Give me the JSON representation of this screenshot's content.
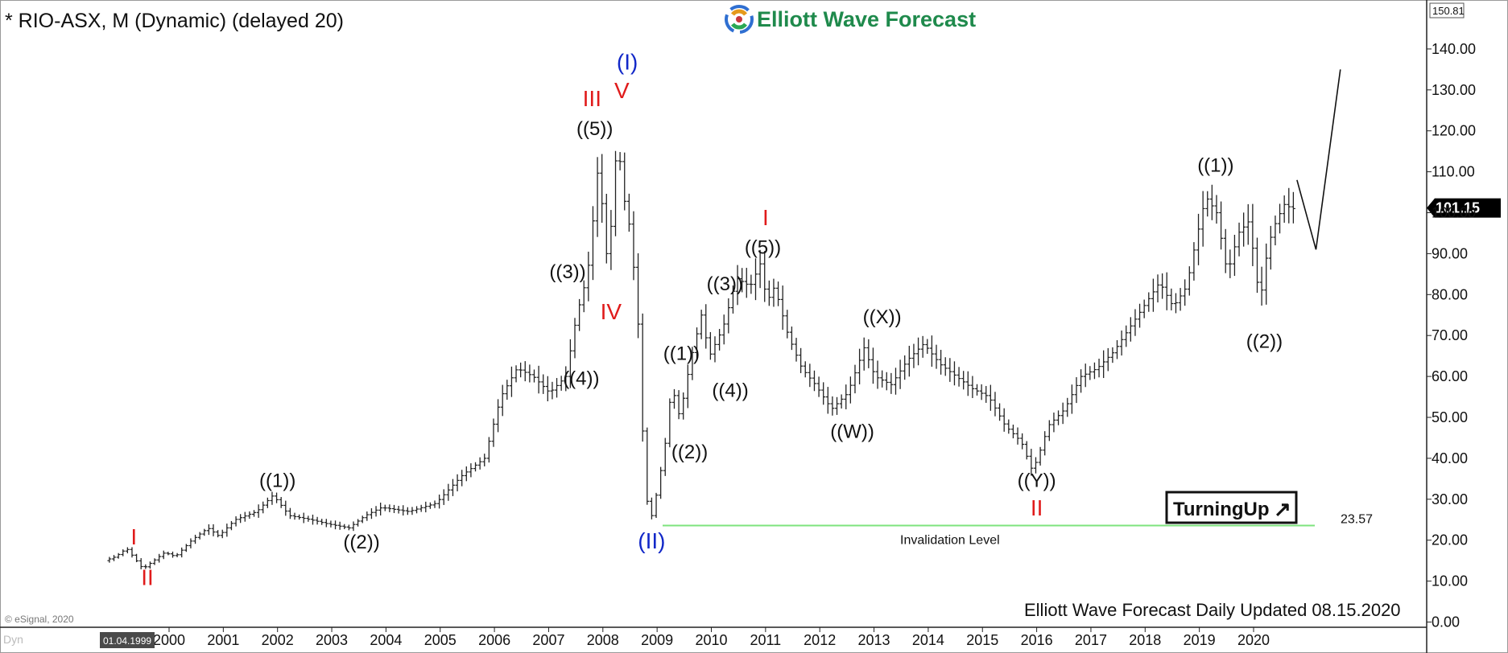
{
  "header": {
    "symbol_title": "* RIO-ASX, M (Dynamic) (delayed 20)",
    "brand_name": "Elliott Wave Forecast"
  },
  "price_axis": {
    "top_value_label": "150.81",
    "current_price_label": "101.15",
    "current_price": 101.15
  },
  "footer": {
    "update_text": "Elliott Wave Forecast Daily Updated 08.15.2020",
    "copyright": "© eSignal, 2020",
    "bottom_left_tag": "Dyn",
    "date_marker": "01.04.1999"
  },
  "badge": {
    "label": "TurningUp",
    "arrow": "↗"
  },
  "invalidation": {
    "label": "Invalidation Level",
    "value_label": "23.57",
    "value": 23.57,
    "line_color": "#7ee37e"
  },
  "colors": {
    "label_black": "#111111",
    "label_red": "#e01b1b",
    "label_blue": "#1228c8",
    "bars": "#222222"
  },
  "chart_data": {
    "type": "line",
    "title": "* RIO-ASX, M (Dynamic) (delayed 20)",
    "xlabel": "",
    "ylabel": "",
    "xlim": [
      1998.9,
      2021.6
    ],
    "ylim": [
      0,
      150
    ],
    "grid": false,
    "y_ticks": [
      0,
      10,
      20,
      30,
      40,
      50,
      60,
      70,
      80,
      90,
      100,
      110,
      120,
      130,
      140
    ],
    "y_tick_labels": [
      "0.00",
      "10.00",
      "20.00",
      "30.00",
      "40.00",
      "50.00",
      "60.00",
      "70.00",
      "80.00",
      "90.00",
      "100.00",
      "110.00",
      "120.00",
      "130.00",
      "140.00"
    ],
    "x_ticks": [
      2000,
      2001,
      2002,
      2003,
      2004,
      2005,
      2006,
      2007,
      2008,
      2009,
      2010,
      2011,
      2012,
      2013,
      2014,
      2015,
      2016,
      2017,
      2018,
      2019,
      2020
    ],
    "x_tick_labels": [
      "2000",
      "2001",
      "2002",
      "2003",
      "2004",
      "2005",
      "2006",
      "2007",
      "2008",
      "2009",
      "2010",
      "2011",
      "2012",
      "2013",
      "2014",
      "2015",
      "2016",
      "2017",
      "2018",
      "2019",
      "2020"
    ],
    "price_path": {
      "x": [
        1998.9,
        1999.1,
        1999.3,
        1999.6,
        2000.0,
        2000.2,
        2000.5,
        2000.8,
        2001.0,
        2001.3,
        2001.7,
        2002.0,
        2002.3,
        2002.7,
        2003.0,
        2003.4,
        2003.7,
        2004.0,
        2004.5,
        2005.0,
        2005.5,
        2005.9,
        2006.2,
        2006.5,
        2006.8,
        2007.1,
        2007.4,
        2007.6,
        2007.8,
        2007.9,
        2008.0,
        2008.15,
        2008.25,
        2008.35,
        2008.45,
        2008.6,
        2008.75,
        2008.85,
        2008.95,
        2009.1,
        2009.25,
        2009.35,
        2009.5,
        2009.7,
        2009.9,
        2010.05,
        2010.3,
        2010.55,
        2010.8,
        2011.0,
        2011.1,
        2011.25,
        2011.5,
        2011.75,
        2012.0,
        2012.3,
        2012.6,
        2012.9,
        2013.1,
        2013.4,
        2013.7,
        2014.0,
        2014.3,
        2014.6,
        2014.9,
        2015.2,
        2015.5,
        2015.8,
        2016.0,
        2016.1,
        2016.3,
        2016.6,
        2016.9,
        2017.2,
        2017.5,
        2017.8,
        2018.1,
        2018.35,
        2018.6,
        2018.85,
        2019.0,
        2019.2,
        2019.4,
        2019.6,
        2019.8,
        2020.0,
        2020.2,
        2020.35,
        2020.5,
        2020.65,
        2020.8
      ],
      "y": [
        15,
        16,
        18,
        13,
        17,
        16,
        20,
        23,
        21,
        25,
        27,
        31,
        26,
        25,
        24,
        23,
        26,
        28,
        27,
        29,
        36,
        40,
        55,
        62,
        60,
        56,
        60,
        75,
        85,
        98,
        112,
        90,
        98,
        120,
        105,
        95,
        70,
        35,
        24,
        33,
        45,
        58,
        50,
        64,
        75,
        65,
        72,
        84,
        82,
        88,
        78,
        82,
        70,
        62,
        58,
        52,
        56,
        67,
        60,
        58,
        64,
        68,
        63,
        60,
        57,
        55,
        48,
        44,
        37,
        40,
        48,
        52,
        60,
        62,
        66,
        72,
        78,
        83,
        77,
        82,
        92,
        104,
        100,
        85,
        95,
        98,
        78,
        92,
        98,
        102,
        101
      ]
    },
    "projection": {
      "x": [
        2020.8,
        2021.15,
        2021.6
      ],
      "y": [
        108,
        91,
        135
      ]
    },
    "invalidation_level": 23.57,
    "wave_labels": [
      {
        "label": "I",
        "x": 1999.35,
        "y": 19,
        "color": "red"
      },
      {
        "label": "II",
        "x": 1999.6,
        "y": 9,
        "color": "red"
      },
      {
        "label": "((1))",
        "x": 2002.0,
        "y": 33,
        "color": "black"
      },
      {
        "label": "((2))",
        "x": 2003.55,
        "y": 18,
        "color": "black"
      },
      {
        "label": "((3))",
        "x": 2007.35,
        "y": 84,
        "color": "black"
      },
      {
        "label": "((4))",
        "x": 2007.6,
        "y": 58,
        "color": "black"
      },
      {
        "label": "((5))",
        "x": 2007.85,
        "y": 119,
        "color": "black"
      },
      {
        "label": "III",
        "x": 2007.8,
        "y": 126,
        "color": "red"
      },
      {
        "label": "IV",
        "x": 2008.15,
        "y": 74,
        "color": "red"
      },
      {
        "label": "V",
        "x": 2008.35,
        "y": 128,
        "color": "red"
      },
      {
        "label": "(I)",
        "x": 2008.45,
        "y": 135,
        "color": "blue"
      },
      {
        "label": "(II)",
        "x": 2008.9,
        "y": 18,
        "color": "blue"
      },
      {
        "label": "((1))",
        "x": 2009.45,
        "y": 64,
        "color": "black"
      },
      {
        "label": "((2))",
        "x": 2009.6,
        "y": 40,
        "color": "black"
      },
      {
        "label": "((3))",
        "x": 2010.25,
        "y": 81,
        "color": "black"
      },
      {
        "label": "((4))",
        "x": 2010.35,
        "y": 55,
        "color": "black"
      },
      {
        "label": "((5))",
        "x": 2010.95,
        "y": 90,
        "color": "black"
      },
      {
        "label": "I",
        "x": 2011.0,
        "y": 97,
        "color": "red"
      },
      {
        "label": "((W))",
        "x": 2012.6,
        "y": 45,
        "color": "black"
      },
      {
        "label": "((X))",
        "x": 2013.15,
        "y": 73,
        "color": "black"
      },
      {
        "label": "((Y))",
        "x": 2016.0,
        "y": 33,
        "color": "black"
      },
      {
        "label": "II",
        "x": 2016.0,
        "y": 26,
        "color": "red"
      },
      {
        "label": "((1))",
        "x": 2019.3,
        "y": 110,
        "color": "black"
      },
      {
        "label": "((2))",
        "x": 2020.2,
        "y": 67,
        "color": "black"
      }
    ]
  }
}
